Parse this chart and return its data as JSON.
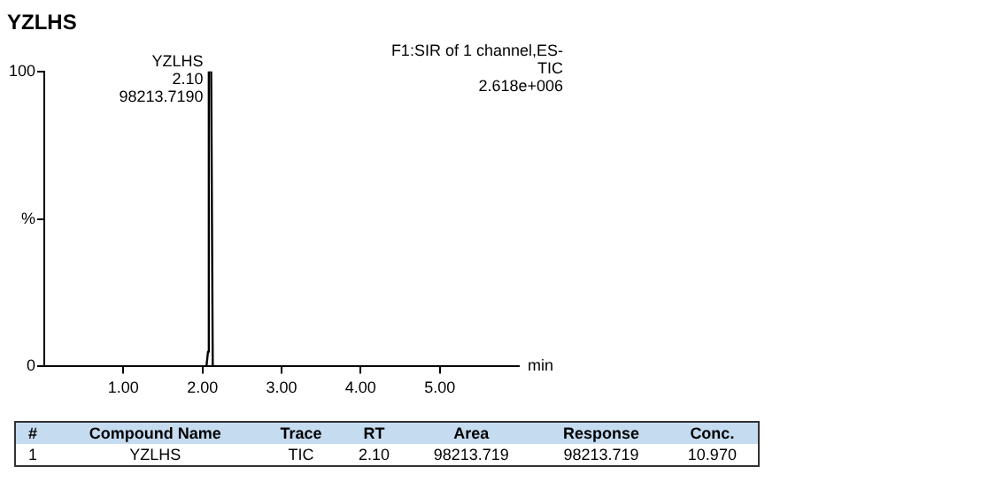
{
  "chart_data": {
    "type": "line",
    "title": "YZLHS",
    "xlabel": "min",
    "x": [
      0,
      2.05,
      2.07,
      2.08,
      2.11,
      2.13,
      6
    ],
    "series": [
      {
        "color": "#000000",
        "values": [
          0,
          0,
          5,
          100,
          100,
          0,
          0
        ]
      }
    ],
    "xlim": [
      0,
      6
    ],
    "xticks": [
      {
        "value": 1,
        "label": "1.00"
      },
      {
        "value": 2,
        "label": "2.00"
      },
      {
        "value": 3,
        "label": "3.00"
      },
      {
        "value": 4,
        "label": "4.00"
      },
      {
        "value": 5,
        "label": "5.00"
      }
    ],
    "ylim": [
      0,
      100
    ],
    "yticks": [
      0,
      {
        "value": 50,
        "label": "%"
      },
      100
    ],
    "grid": false,
    "legend": false,
    "marker": "none",
    "line_style": "solid",
    "annotations": [
      {
        "text": "YZLHS\n2.10\n98213.7190",
        "x": 2.1,
        "y": 100
      },
      "F1:SIR of 1 channel,ES-",
      "TIC",
      "2.618e+006",
      "#",
      "Compound Name",
      "Trace",
      "RT",
      "Area",
      "Response",
      "Conc.",
      "1",
      "YZLHS",
      "TIC",
      "2.10",
      "98213.719",
      "98213.719",
      "10.970"
    ]
  }
}
